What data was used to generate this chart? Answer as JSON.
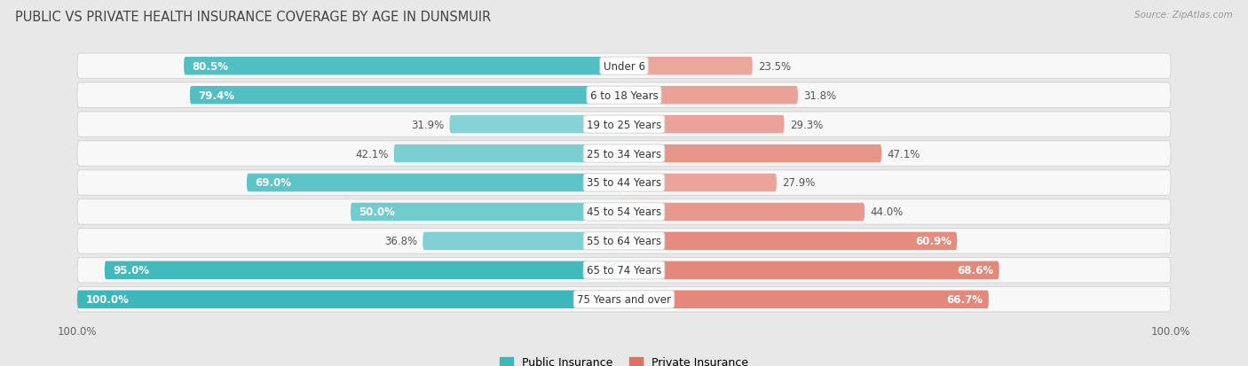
{
  "title": "PUBLIC VS PRIVATE HEALTH INSURANCE COVERAGE BY AGE IN DUNSMUIR",
  "source": "Source: ZipAtlas.com",
  "categories": [
    "Under 6",
    "6 to 18 Years",
    "19 to 25 Years",
    "25 to 34 Years",
    "35 to 44 Years",
    "45 to 54 Years",
    "55 to 64 Years",
    "65 to 74 Years",
    "75 Years and over"
  ],
  "public_values": [
    80.5,
    79.4,
    31.9,
    42.1,
    69.0,
    50.0,
    36.8,
    95.0,
    100.0
  ],
  "private_values": [
    23.5,
    31.8,
    29.3,
    47.1,
    27.9,
    44.0,
    60.9,
    68.6,
    66.7
  ],
  "public_color_dark": "#3cb8bc",
  "public_color_light": "#a8dfe0",
  "private_color_dark": "#e07060",
  "private_color_light": "#f0b8b0",
  "bg_color": "#e8e8e8",
  "row_bg": "#f8f8f8",
  "max_value": 100.0,
  "label_fontsize": 8.5,
  "title_fontsize": 10.5,
  "legend_fontsize": 9,
  "threshold_inside": 50.0
}
